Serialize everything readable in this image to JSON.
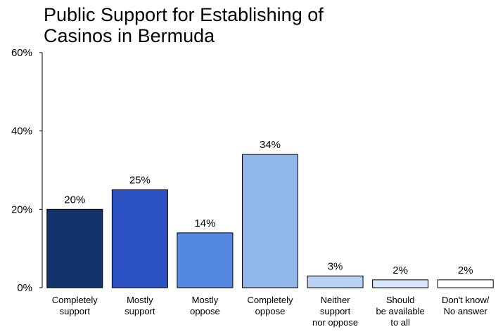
{
  "chart_data": {
    "type": "bar",
    "title_lines": [
      "Public Support for Establishing of",
      "Casinos in Bermuda"
    ],
    "categories": [
      [
        "Completely",
        "support"
      ],
      [
        "Mostly",
        "support"
      ],
      [
        "Mostly",
        "oppose"
      ],
      [
        "Completely",
        "oppose"
      ],
      [
        "Neither",
        "support",
        "nor oppose"
      ],
      [
        "Should",
        "be available",
        "to all"
      ],
      [
        "Don't know/",
        "No answer"
      ]
    ],
    "values": [
      20,
      25,
      14,
      34,
      3,
      2,
      2
    ],
    "value_labels": [
      "20%",
      "25%",
      "14%",
      "34%",
      "3%",
      "2%",
      "2%"
    ],
    "bar_colors": [
      "#12336b",
      "#2d52c4",
      "#5588e0",
      "#91b6ea",
      "#b9d2f4",
      "#d8e6fa",
      "#ffffff"
    ],
    "y_ticks": [
      0,
      20,
      40,
      60
    ],
    "y_tick_labels": [
      "0%",
      "20%",
      "40%",
      "60%"
    ],
    "ylim": [
      0,
      60
    ],
    "grid": false,
    "legend": "none"
  }
}
